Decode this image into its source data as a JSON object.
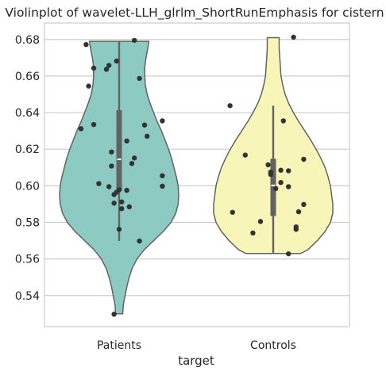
{
  "chart_data": {
    "type": "violin",
    "title": "Violinplot of wavelet-LLH_glrlm_ShortRunEmphasis for cistern",
    "xlabel": "target",
    "ylabel": "",
    "categories": [
      "Patients",
      "Controls"
    ],
    "ylim": [
      0.523,
      0.689
    ],
    "yticks": [
      0.54,
      0.56,
      0.58,
      0.6,
      0.62,
      0.64,
      0.66,
      0.68
    ],
    "ytick_labels": [
      "0.54",
      "0.56",
      "0.58",
      "0.60",
      "0.62",
      "0.64",
      "0.66",
      "0.68"
    ],
    "grid": "horizontal",
    "colors": {
      "Patients": "#8dcac1",
      "Controls": "#f7f6b8",
      "outline": "#636363",
      "points": "#333333",
      "box": "#626262",
      "grid": "#cccccc",
      "axes": "#cccccc"
    },
    "series": [
      {
        "name": "Patients",
        "min": 0.5698,
        "max": 0.6792,
        "q1": 0.5972,
        "median": 0.6145,
        "q3": 0.6413,
        "violin": {
          "y": [
            0.53,
            0.535,
            0.54,
            0.545,
            0.55,
            0.555,
            0.56,
            0.565,
            0.57,
            0.575,
            0.58,
            0.585,
            0.59,
            0.595,
            0.6,
            0.605,
            0.61,
            0.615,
            0.62,
            0.625,
            0.63,
            0.635,
            0.64,
            0.645,
            0.65,
            0.655,
            0.66,
            0.665,
            0.67,
            0.675,
            0.679
          ],
          "half_width": [
            0.06,
            0.07,
            0.1,
            0.13,
            0.17,
            0.22,
            0.3,
            0.42,
            0.58,
            0.74,
            0.87,
            0.95,
            0.99,
            1.0,
            0.99,
            0.96,
            0.92,
            0.88,
            0.83,
            0.77,
            0.71,
            0.64,
            0.58,
            0.52,
            0.47,
            0.44,
            0.43,
            0.43,
            0.45,
            0.48,
            0.5
          ]
        },
        "points": [
          {
            "x": -0.13,
            "y": 0.6772
          },
          {
            "x": 0.06,
            "y": 0.6795
          },
          {
            "x": -0.1,
            "y": 0.6643
          },
          {
            "x": -0.04,
            "y": 0.6658
          },
          {
            "x": -0.01,
            "y": 0.6682
          },
          {
            "x": -0.05,
            "y": 0.6637
          },
          {
            "x": 0.08,
            "y": 0.6587
          },
          {
            "x": -0.12,
            "y": 0.6545
          },
          {
            "x": 0.17,
            "y": 0.6355
          },
          {
            "x": -0.1,
            "y": 0.6335
          },
          {
            "x": 0.1,
            "y": 0.6332
          },
          {
            "x": -0.15,
            "y": 0.6312
          },
          {
            "x": 0.11,
            "y": 0.6271
          },
          {
            "x": 0.03,
            "y": 0.6245
          },
          {
            "x": -0.03,
            "y": 0.6185
          },
          {
            "x": 0.06,
            "y": 0.6152
          },
          {
            "x": 0.05,
            "y": 0.6122
          },
          {
            "x": -0.03,
            "y": 0.6108
          },
          {
            "x": 0.17,
            "y": 0.6055
          },
          {
            "x": -0.08,
            "y": 0.6012
          },
          {
            "x": -0.04,
            "y": 0.5995
          },
          {
            "x": 0.17,
            "y": 0.5998
          },
          {
            "x": 0.0,
            "y": 0.5978
          },
          {
            "x": 0.03,
            "y": 0.5975
          },
          {
            "x": -0.01,
            "y": 0.5965
          },
          {
            "x": -0.02,
            "y": 0.5952
          },
          {
            "x": 0.01,
            "y": 0.5912
          },
          {
            "x": -0.02,
            "y": 0.5905
          },
          {
            "x": 0.04,
            "y": 0.5885
          },
          {
            "x": 0.01,
            "y": 0.5875
          },
          {
            "x": 0.0,
            "y": 0.5762
          },
          {
            "x": 0.08,
            "y": 0.5698
          },
          {
            "x": -0.02,
            "y": 0.5298
          }
        ]
      },
      {
        "name": "Controls",
        "min": 0.5628,
        "max": 0.6438,
        "q1": 0.5835,
        "median": 0.6002,
        "q3": 0.6148,
        "violin": {
          "y": [
            0.563,
            0.565,
            0.57,
            0.575,
            0.58,
            0.585,
            0.59,
            0.595,
            0.6,
            0.605,
            0.61,
            0.615,
            0.62,
            0.625,
            0.63,
            0.635,
            0.64,
            0.645,
            0.65,
            0.655,
            0.66,
            0.665,
            0.67,
            0.675,
            0.681
          ],
          "half_width": [
            0.46,
            0.58,
            0.74,
            0.87,
            0.96,
            1.0,
            1.0,
            0.98,
            0.96,
            0.92,
            0.87,
            0.8,
            0.72,
            0.63,
            0.53,
            0.43,
            0.34,
            0.26,
            0.2,
            0.16,
            0.13,
            0.12,
            0.11,
            0.1,
            0.1
          ]
        },
        "points": [
          {
            "x": 0.08,
            "y": 0.6812
          },
          {
            "x": -0.17,
            "y": 0.6438
          },
          {
            "x": 0.04,
            "y": 0.6355
          },
          {
            "x": -0.11,
            "y": 0.6168
          },
          {
            "x": 0.12,
            "y": 0.6145
          },
          {
            "x": -0.02,
            "y": 0.6115
          },
          {
            "x": -0.01,
            "y": 0.6075
          },
          {
            "x": -0.01,
            "y": 0.6062
          },
          {
            "x": 0.03,
            "y": 0.6085
          },
          {
            "x": 0.06,
            "y": 0.6082
          },
          {
            "x": 0.03,
            "y": 0.6018
          },
          {
            "x": 0.06,
            "y": 0.5995
          },
          {
            "x": 0.01,
            "y": 0.5985
          },
          {
            "x": 0.12,
            "y": 0.5898
          },
          {
            "x": -0.16,
            "y": 0.5855
          },
          {
            "x": 0.1,
            "y": 0.5858
          },
          {
            "x": -0.05,
            "y": 0.5805
          },
          {
            "x": 0.09,
            "y": 0.5775
          },
          {
            "x": 0.09,
            "y": 0.5762
          },
          {
            "x": -0.08,
            "y": 0.5742
          },
          {
            "x": 0.06,
            "y": 0.5628
          }
        ]
      }
    ]
  }
}
